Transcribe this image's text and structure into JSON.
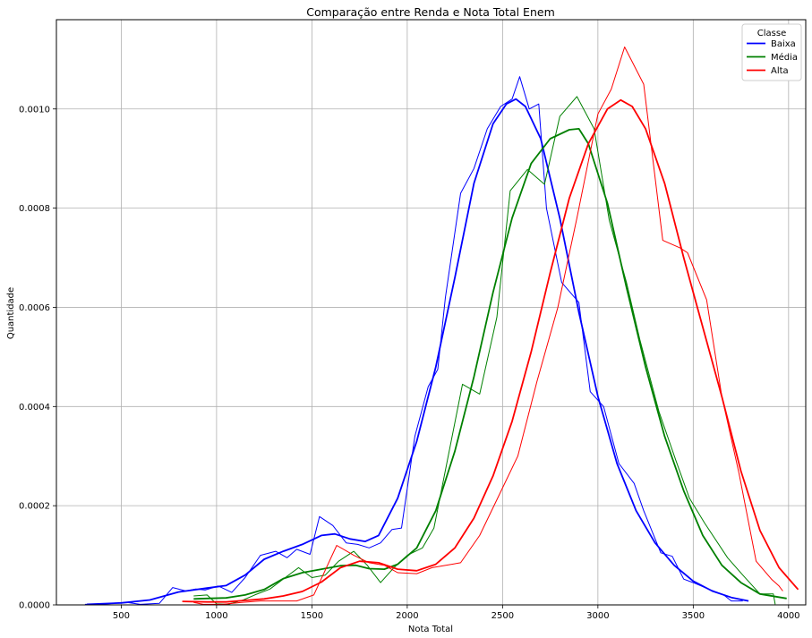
{
  "chart_data": {
    "type": "line",
    "title": "Comparação entre Renda e Nota Total Enem",
    "xlabel": "Nota Total",
    "ylabel": "Quantidade",
    "xlim": [
      160,
      4090
    ],
    "ylim": [
      0,
      0.00118
    ],
    "xticks": [
      500,
      1000,
      1500,
      2000,
      2500,
      3000,
      3500,
      4000
    ],
    "yticks": [
      0.0,
      0.0002,
      0.0004,
      0.0006,
      0.0008,
      0.001
    ],
    "ytick_labels": [
      "0.0000",
      "0.0002",
      "0.0004",
      "0.0006",
      "0.0008",
      "0.0010"
    ],
    "grid": true,
    "legend": {
      "title": "Classe",
      "position": "top-right"
    },
    "series": [
      {
        "name": "Baixa",
        "color": "#0000ff",
        "histogram_line": [
          [
            310,
            1e-06
          ],
          [
            420,
            2e-06
          ],
          [
            530,
            5e-06
          ],
          [
            600,
            1e-06
          ],
          [
            700,
            3e-06
          ],
          [
            770,
            3.5e-05
          ],
          [
            840,
            2.8e-05
          ],
          [
            890,
            3.2e-05
          ],
          [
            940,
            3e-05
          ],
          [
            1010,
            3.8e-05
          ],
          [
            1080,
            2.5e-05
          ],
          [
            1150,
            5.5e-05
          ],
          [
            1230,
            0.0001
          ],
          [
            1310,
            0.000108
          ],
          [
            1370,
            9.5e-05
          ],
          [
            1420,
            0.000112
          ],
          [
            1490,
            0.000102
          ],
          [
            1540,
            0.000178
          ],
          [
            1610,
            0.00016
          ],
          [
            1680,
            0.000125
          ],
          [
            1740,
            0.000122
          ],
          [
            1800,
            0.000115
          ],
          [
            1860,
            0.000125
          ],
          [
            1920,
            0.000152
          ],
          [
            1970,
            0.000155
          ],
          [
            2040,
            0.00034
          ],
          [
            2110,
            0.00044
          ],
          [
            2160,
            0.000475
          ],
          [
            2200,
            0.00062
          ],
          [
            2280,
            0.00083
          ],
          [
            2350,
            0.00088
          ],
          [
            2420,
            0.00096
          ],
          [
            2490,
            0.001005
          ],
          [
            2550,
            0.00102
          ],
          [
            2590,
            0.001065
          ],
          [
            2640,
            0.001
          ],
          [
            2690,
            0.00101
          ],
          [
            2730,
            0.0008
          ],
          [
            2810,
            0.00065
          ],
          [
            2900,
            0.00061
          ],
          [
            2960,
            0.00043
          ],
          [
            3030,
            0.0004
          ],
          [
            3110,
            0.000285
          ],
          [
            3190,
            0.000245
          ],
          [
            3240,
            0.00019
          ],
          [
            3330,
            0.000105
          ],
          [
            3390,
            9.8e-05
          ],
          [
            3450,
            5.2e-05
          ],
          [
            3500,
            4.5e-05
          ],
          [
            3580,
            3.2e-05
          ],
          [
            3660,
            2e-05
          ],
          [
            3700,
            8e-06
          ],
          [
            3760,
            8e-06
          ]
        ],
        "kde": [
          [
            320,
            1e-06
          ],
          [
            500,
            4e-06
          ],
          [
            650,
            1e-05
          ],
          [
            800,
            2.6e-05
          ],
          [
            950,
            3.4e-05
          ],
          [
            1050,
            3.9e-05
          ],
          [
            1150,
            6e-05
          ],
          [
            1250,
            9.2e-05
          ],
          [
            1350,
            0.000108
          ],
          [
            1450,
            0.000122
          ],
          [
            1550,
            0.00014
          ],
          [
            1620,
            0.000143
          ],
          [
            1700,
            0.000133
          ],
          [
            1780,
            0.000128
          ],
          [
            1850,
            0.00014
          ],
          [
            1950,
            0.000215
          ],
          [
            2050,
            0.00033
          ],
          [
            2150,
            0.00048
          ],
          [
            2250,
            0.00066
          ],
          [
            2350,
            0.00085
          ],
          [
            2450,
            0.00097
          ],
          [
            2520,
            0.00101
          ],
          [
            2570,
            0.00102
          ],
          [
            2620,
            0.001005
          ],
          [
            2700,
            0.00094
          ],
          [
            2800,
            0.00078
          ],
          [
            2900,
            0.00059
          ],
          [
            3000,
            0.00042
          ],
          [
            3100,
            0.000285
          ],
          [
            3200,
            0.00019
          ],
          [
            3300,
            0.000125
          ],
          [
            3400,
            8e-05
          ],
          [
            3500,
            4.8e-05
          ],
          [
            3600,
            2.8e-05
          ],
          [
            3700,
            1.5e-05
          ],
          [
            3790,
            8e-06
          ]
        ]
      },
      {
        "name": "Média",
        "color": "#008000",
        "histogram_line": [
          [
            880,
            1.8e-05
          ],
          [
            950,
            2e-05
          ],
          [
            1000,
            2e-06
          ],
          [
            1060,
            1e-06
          ],
          [
            1140,
            1e-05
          ],
          [
            1200,
            2e-05
          ],
          [
            1280,
            3.2e-05
          ],
          [
            1360,
            5.5e-05
          ],
          [
            1430,
            7.5e-05
          ],
          [
            1500,
            5.5e-05
          ],
          [
            1570,
            6e-05
          ],
          [
            1640,
            8.8e-05
          ],
          [
            1720,
            0.000108
          ],
          [
            1790,
            8e-05
          ],
          [
            1860,
            4.5e-05
          ],
          [
            1930,
            7.5e-05
          ],
          [
            2000,
            0.0001
          ],
          [
            2080,
            0.000115
          ],
          [
            2140,
            0.000155
          ],
          [
            2290,
            0.000445
          ],
          [
            2380,
            0.000425
          ],
          [
            2470,
            0.00058
          ],
          [
            2540,
            0.000835
          ],
          [
            2630,
            0.000878
          ],
          [
            2720,
            0.000848
          ],
          [
            2800,
            0.000985
          ],
          [
            2890,
            0.001025
          ],
          [
            2980,
            0.00096
          ],
          [
            3060,
            0.000775
          ],
          [
            3150,
            0.00065
          ],
          [
            3220,
            0.000535
          ],
          [
            3320,
            0.00039
          ],
          [
            3410,
            0.00029
          ],
          [
            3480,
            0.000215
          ],
          [
            3560,
            0.000165
          ],
          [
            3680,
            9.5e-05
          ],
          [
            3760,
            6e-05
          ],
          [
            3850,
            2.2e-05
          ],
          [
            3920,
            2.2e-05
          ],
          [
            3930,
            1e-06
          ]
        ],
        "kde": [
          [
            880,
            1.2e-05
          ],
          [
            950,
            1.3e-05
          ],
          [
            1050,
            1.4e-05
          ],
          [
            1150,
            2e-05
          ],
          [
            1250,
            3.1e-05
          ],
          [
            1350,
            5.3e-05
          ],
          [
            1450,
            6.5e-05
          ],
          [
            1550,
            7.2e-05
          ],
          [
            1650,
            7.9e-05
          ],
          [
            1730,
            8e-05
          ],
          [
            1800,
            7.3e-05
          ],
          [
            1880,
            7.2e-05
          ],
          [
            1950,
            8.2e-05
          ],
          [
            2050,
            0.000115
          ],
          [
            2150,
            0.00019
          ],
          [
            2250,
            0.00031
          ],
          [
            2350,
            0.00046
          ],
          [
            2450,
            0.00063
          ],
          [
            2550,
            0.00078
          ],
          [
            2650,
            0.00089
          ],
          [
            2750,
            0.00094
          ],
          [
            2850,
            0.000958
          ],
          [
            2900,
            0.00096
          ],
          [
            2950,
            0.00093
          ],
          [
            3050,
            0.00081
          ],
          [
            3150,
            0.00064
          ],
          [
            3250,
            0.00048
          ],
          [
            3350,
            0.00034
          ],
          [
            3450,
            0.00023
          ],
          [
            3550,
            0.00014
          ],
          [
            3650,
            8e-05
          ],
          [
            3750,
            4.5e-05
          ],
          [
            3850,
            2.2e-05
          ],
          [
            3990,
            1.3e-05
          ]
        ]
      },
      {
        "name": "Alta",
        "color": "#ff0000",
        "histogram_line": [
          [
            880,
            5e-06
          ],
          [
            930,
            1e-06
          ],
          [
            1030,
            1e-06
          ],
          [
            1130,
            5e-06
          ],
          [
            1230,
            8e-06
          ],
          [
            1320,
            8e-06
          ],
          [
            1420,
            8e-06
          ],
          [
            1510,
            2e-05
          ],
          [
            1630,
            0.00012
          ],
          [
            1720,
            0.0001
          ],
          [
            1800,
            8.5e-05
          ],
          [
            1880,
            8e-05
          ],
          [
            1950,
            6.5e-05
          ],
          [
            2050,
            6.3e-05
          ],
          [
            2130,
            7.5e-05
          ],
          [
            2280,
            8.5e-05
          ],
          [
            2380,
            0.00014
          ],
          [
            2480,
            0.00022
          ],
          [
            2580,
            0.0003
          ],
          [
            2680,
            0.00045
          ],
          [
            2790,
            0.0006
          ],
          [
            2890,
            0.00078
          ],
          [
            3000,
            0.00099
          ],
          [
            3070,
            0.00104
          ],
          [
            3140,
            0.001125
          ],
          [
            3240,
            0.00105
          ],
          [
            3340,
            0.000735
          ],
          [
            3430,
            0.00072
          ],
          [
            3470,
            0.00071
          ],
          [
            3570,
            0.000615
          ],
          [
            3650,
            0.00042
          ],
          [
            3740,
            0.000265
          ],
          [
            3830,
            8.8e-05
          ],
          [
            3910,
            5.2e-05
          ],
          [
            3950,
            3.8e-05
          ],
          [
            3970,
            2.8e-05
          ]
        ],
        "kde": [
          [
            820,
            7e-06
          ],
          [
            950,
            6e-06
          ],
          [
            1050,
            6e-06
          ],
          [
            1150,
            9e-06
          ],
          [
            1250,
            1.2e-05
          ],
          [
            1350,
            1.8e-05
          ],
          [
            1450,
            2.7e-05
          ],
          [
            1550,
            4.6e-05
          ],
          [
            1650,
            7.5e-05
          ],
          [
            1750,
            8.8e-05
          ],
          [
            1850,
            8.5e-05
          ],
          [
            1950,
            7.2e-05
          ],
          [
            2050,
            6.9e-05
          ],
          [
            2150,
            8.2e-05
          ],
          [
            2250,
            0.000115
          ],
          [
            2350,
            0.000175
          ],
          [
            2450,
            0.00026
          ],
          [
            2550,
            0.00037
          ],
          [
            2650,
            0.00051
          ],
          [
            2750,
            0.00067
          ],
          [
            2850,
            0.00082
          ],
          [
            2950,
            0.00093
          ],
          [
            3050,
            0.001
          ],
          [
            3120,
            0.001018
          ],
          [
            3180,
            0.001005
          ],
          [
            3250,
            0.00096
          ],
          [
            3350,
            0.00085
          ],
          [
            3450,
            0.0007
          ],
          [
            3550,
            0.00056
          ],
          [
            3650,
            0.00042
          ],
          [
            3750,
            0.00027
          ],
          [
            3850,
            0.00015
          ],
          [
            3950,
            7.5e-05
          ],
          [
            4050,
            3.1e-05
          ]
        ]
      }
    ]
  }
}
